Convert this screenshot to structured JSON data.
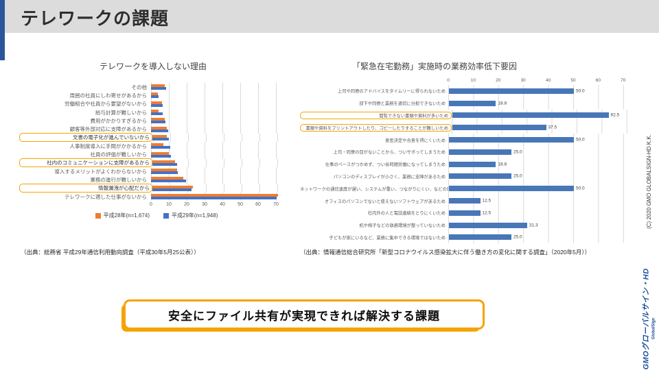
{
  "slide": {
    "title": "テレワークの課題",
    "banner": "安全にファイル共有が実現できれば解決する課題",
    "copyright": "(C) 2020 GMO GLOBALSIGN-HD K.K.",
    "logo": {
      "text": "GMOグローバルサイン・HD",
      "sub": "GlobalSign"
    }
  },
  "colors": {
    "header_bg": "#dcdcdc",
    "accent_stripe": "#2b579a",
    "highlight_orange": "#f5a300",
    "series_h28_orange": "#ED7D31",
    "series_h29_blue": "#4472C4",
    "right_bar_blue": "#4877b8",
    "gridline": "#d9d9d9"
  },
  "chart_data": [
    {
      "type": "bar",
      "orientation": "horizontal",
      "title": "テレワークを導入しない理由",
      "categories": [
        "その他",
        "周囲の社員にしわ寄せがあるから",
        "労働組合や社員から要望がないから",
        "給与計算が難しいから",
        "費用がかかりすぎるから",
        "顧客等外部対応に支障があるから",
        "文書の電子化が進んでいないから",
        "人事制度導入に手間がかかるから",
        "社員の評価が難しいから",
        "社内のコミュニケーションに支障があるから",
        "導入するメリットがよくわからないから",
        "業務の進行が難しいから",
        "情報漏洩が心配だから",
        "テレワークに適した仕事がないから"
      ],
      "highlight_indices": [
        6,
        9,
        12
      ],
      "series": [
        {
          "name": "平成28年(n=1,674)",
          "color": "#ED7D31",
          "values": [
            7.5,
            3.9,
            6.0,
            4.2,
            7.5,
            9.0,
            8.0,
            7.0,
            10.0,
            12.6,
            14.7,
            18.2,
            22.5,
            71.3
          ]
        },
        {
          "name": "平成29年(n=1,948)",
          "color": "#4472C4",
          "values": [
            8.3,
            4.3,
            6.5,
            6.5,
            8.1,
            9.6,
            9.4,
            10.8,
            11.3,
            13.7,
            15.0,
            19.5,
            21.8,
            70.2
          ]
        }
      ],
      "xticks": [
        0,
        10,
        20,
        30,
        40,
        50,
        60,
        70
      ],
      "xlim": [
        0,
        78
      ],
      "legend_position": "bottom",
      "grid": true,
      "source": "（出典：総務省 平成29年通信利用動向調査（平成30年5月25公表））"
    },
    {
      "type": "bar",
      "orientation": "horizontal",
      "title": "「緊急在宅勤務」実施時の業務効率低下要因",
      "categories": [
        "上司や同僚のアドバイスをタイムリーに得られないため",
        "部下や同僚と業務を適切に分担できないため",
        "閲覧できない書類や資料が多いため",
        "書類や資料をプリントアウトしたり、コピーしたりすることが難しいため",
        "意思決定や合意を得にくいため",
        "上司・同僚の目がないことから、ついサボってしまうため",
        "仕事のペースがつかめず、つい長時間労働になってしまうため",
        "パソコンのディスプレイが小さく、業務に支障があるため",
        "ネットワークの通信速度が遅い、システムが重い、つながりにくい、などの理由で…",
        "オフィスのパソコンでないと使えないソフトウェアがあるため",
        "社内外の人と電話連絡をとりにくいため",
        "机や椅子などの執務環境が整っていないため",
        "子どもが家にいるなど、業務に集中できる環境ではないため"
      ],
      "highlight_indices": [
        2,
        3
      ],
      "values": [
        50.0,
        18.8,
        62.5,
        37.5,
        50.0,
        25.0,
        18.8,
        25.0,
        50.0,
        12.5,
        12.5,
        31.3,
        25.0
      ],
      "data_labels": [
        "50.0",
        "18.8",
        "62.5",
        "37.5",
        "50.0",
        "25.0",
        "18.8",
        "25.0",
        "50.0",
        "12.5",
        "12.5",
        "31.3",
        "25.0"
      ],
      "bar_color": "#4877b8",
      "xticks": [
        0,
        10,
        20,
        30,
        40,
        50,
        60,
        70
      ],
      "xlim": [
        0,
        70
      ],
      "grid": true,
      "source": "（出典：情報通信総合研究所「新型コロナウイルス感染拡大に伴う働き方の変化に関する調査」（2020年5月））"
    }
  ]
}
